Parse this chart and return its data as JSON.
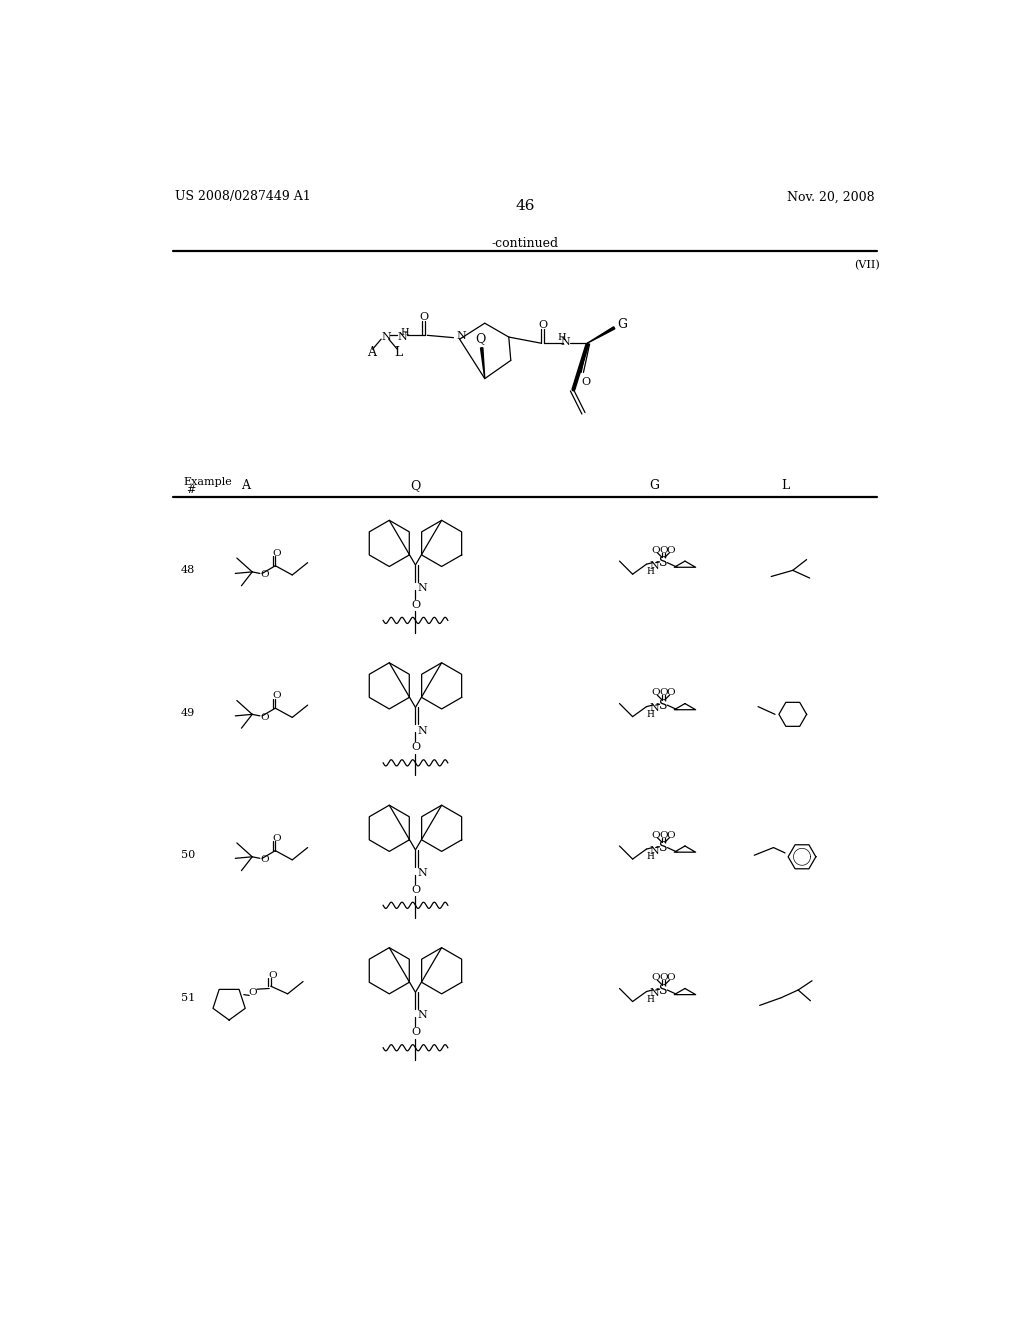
{
  "title_left": "US 2008/0287449 A1",
  "title_right": "Nov. 20, 2008",
  "page_number": "46",
  "continued": "-continued",
  "formula_label": "(VII)",
  "col_headers": [
    "Example\n#",
    "A",
    "Q",
    "G",
    "L"
  ],
  "row_nums": [
    "48",
    "49",
    "50",
    "51"
  ],
  "bg": "#ffffff"
}
